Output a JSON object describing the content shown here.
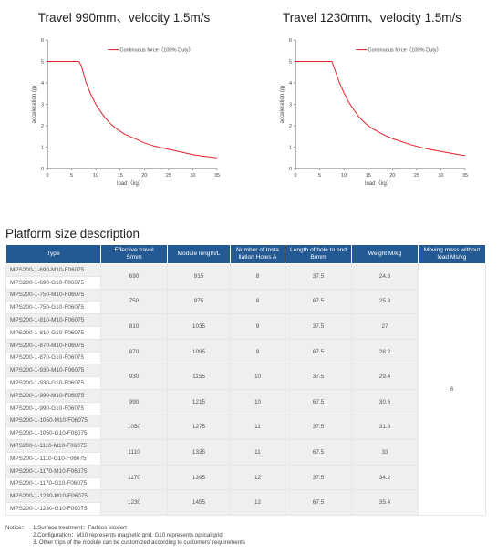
{
  "chart_data": [
    {
      "type": "line",
      "title": "Travel 990mm、velocity 1.5m/s",
      "xlabel": "load（kg）",
      "ylabel": "acceleration (g)",
      "xlim": [
        0,
        35
      ],
      "ylim": [
        0,
        6
      ],
      "xticks": [
        "0",
        "5",
        "10",
        "15",
        "20",
        "25",
        "30",
        "35"
      ],
      "yticks": [
        "0",
        "1",
        "2",
        "3",
        "4",
        "5",
        "6"
      ],
      "legend": "top-right",
      "series": [
        {
          "name": "Continuous force（100% Duty）",
          "color": "#e8202a",
          "x": [
            0,
            6.5,
            7,
            8,
            9,
            10,
            11,
            12,
            13,
            14,
            15,
            16,
            18,
            20,
            22,
            24,
            26,
            28,
            30,
            32,
            35
          ],
          "y": [
            5,
            5,
            4.8,
            4.0,
            3.45,
            3.0,
            2.65,
            2.35,
            2.1,
            1.9,
            1.75,
            1.6,
            1.4,
            1.2,
            1.05,
            0.95,
            0.85,
            0.75,
            0.65,
            0.58,
            0.5
          ]
        }
      ]
    },
    {
      "type": "line",
      "title": "Travel 1230mm、velocity 1.5m/s",
      "xlabel": "load（kg）",
      "ylabel": "acceleration (g)",
      "xlim": [
        0,
        35
      ],
      "ylim": [
        0,
        6
      ],
      "xticks": [
        "0",
        "5",
        "10",
        "15",
        "20",
        "25",
        "30",
        "35"
      ],
      "yticks": [
        "0",
        "1",
        "2",
        "3",
        "4",
        "5",
        "6"
      ],
      "legend": "top-right",
      "series": [
        {
          "name": "Continuous force（100% Duty）",
          "color": "#e8202a",
          "x": [
            0,
            7.5,
            8,
            9,
            10,
            11,
            12,
            13,
            14,
            15,
            16,
            18,
            20,
            22,
            24,
            26,
            28,
            30,
            32,
            35
          ],
          "y": [
            5,
            5,
            4.7,
            4.05,
            3.55,
            3.1,
            2.75,
            2.45,
            2.2,
            2.0,
            1.85,
            1.6,
            1.4,
            1.25,
            1.1,
            0.98,
            0.88,
            0.8,
            0.72,
            0.6
          ]
        }
      ]
    }
  ],
  "section_title": "Platform size description",
  "table": {
    "headers": [
      "Type",
      "Effective travel\nS/mm",
      "Module length/L",
      "Number of Insta\nllation Holes A",
      "Length of hole to end\nB/mm",
      "Weight M/kg",
      "Moving mass without\nload Ms/kg"
    ],
    "moving_mass": "6",
    "groups": [
      {
        "types": [
          "MPS200-1-690-M10-F06075",
          "MPS200-1-690-G10-F06075"
        ],
        "travel": "690",
        "length": "915",
        "holes": "8",
        "b": "37.5",
        "weight": "24.6"
      },
      {
        "types": [
          "MPS200-1-750-M10-F06075",
          "MPS200-1-750-G10-F06075"
        ],
        "travel": "750",
        "length": "975",
        "holes": "8",
        "b": "67.5",
        "weight": "25.8"
      },
      {
        "types": [
          "MPS200-1-810-M10-F06075",
          "MPS200-1-810-G10-F06075"
        ],
        "travel": "810",
        "length": "1035",
        "holes": "9",
        "b": "37.5",
        "weight": "27"
      },
      {
        "types": [
          "MPS200-1-870-M10-F06075",
          "MPS200-1-870-G10-F06075"
        ],
        "travel": "870",
        "length": "1095",
        "holes": "9",
        "b": "67.5",
        "weight": "28.2"
      },
      {
        "types": [
          "MPS200-1-930-M10-F06075",
          "MPS200-1-930-G10-F06075"
        ],
        "travel": "930",
        "length": "1155",
        "holes": "10",
        "b": "37.5",
        "weight": "29.4"
      },
      {
        "types": [
          "MPS200-1-990-M10-F06075",
          "MPS200-1-990-G10-F06075"
        ],
        "travel": "990",
        "length": "1215",
        "holes": "10",
        "b": "67.5",
        "weight": "30.6"
      },
      {
        "types": [
          "MPS200-1-1050-M10-F06075",
          "MPS200-1-1050-G10-F06075"
        ],
        "travel": "1050",
        "length": "1275",
        "holes": "11",
        "b": "37.5",
        "weight": "31.8"
      },
      {
        "types": [
          "MPS200-1-1110-M10-F06075",
          "MPS200-1-1110-G10-F06075"
        ],
        "travel": "1110",
        "length": "1335",
        "holes": "11",
        "b": "67.5",
        "weight": "33"
      },
      {
        "types": [
          "MPS200-1-1170-M10-F06075",
          "MPS200-1-1170-G10-F06075"
        ],
        "travel": "1170",
        "length": "1395",
        "holes": "12",
        "b": "37.5",
        "weight": "34.2"
      },
      {
        "types": [
          "MPS200-1-1230-M10-F06075",
          "MPS200-1-1230-G10-F06075"
        ],
        "travel": "1230",
        "length": "1455",
        "holes": "12",
        "b": "67.5",
        "weight": "35.4"
      }
    ]
  },
  "notice": {
    "label": "Notice：",
    "lines": [
      "1.Surface treatment：Farblos eloxiert",
      "2.Configuration：M10 represents magnetic grid, G10 represents optical grid",
      "3. Other trips of the module can be customized according to customers' requirements"
    ]
  }
}
